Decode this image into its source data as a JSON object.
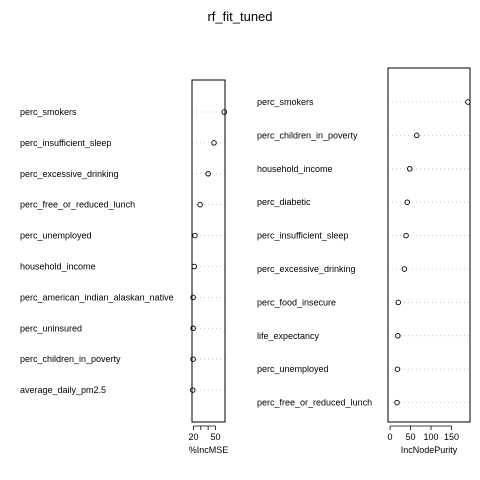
{
  "title": "rf_fit_tuned",
  "chart_data": [
    {
      "type": "scatter",
      "xlabel": "%IncMSE",
      "xlim": [
        18,
        63
      ],
      "xticks": [
        20,
        30,
        40,
        50
      ],
      "xticklabels": [
        "20",
        "",
        "",
        "50"
      ],
      "categories": [
        "perc_smokers",
        "perc_insufficient_sleep",
        "perc_excessive_drinking",
        "perc_free_or_reduced_lunch",
        "perc_unemployed",
        "household_income",
        "perc_american_indian_alaskan_native",
        "perc_uninsured",
        "perc_children_in_poverty",
        "average_daily_pm2.5"
      ],
      "values": [
        62,
        48,
        40,
        29,
        22,
        21,
        19.5,
        19.5,
        19.5,
        19
      ]
    },
    {
      "type": "scatter",
      "xlabel": "IncNodePurity",
      "xlim": [
        -5,
        195
      ],
      "xticks": [
        0,
        50,
        100,
        150
      ],
      "xticklabels": [
        "0",
        "50",
        "100",
        "150"
      ],
      "categories": [
        "perc_smokers",
        "perc_children_in_poverty",
        "household_income",
        "perc_diabetic",
        "perc_insufficient_sleep",
        "perc_excessive_drinking",
        "perc_food_insecure",
        "life_expectancy",
        "perc_unemployed",
        "perc_free_or_reduced_lunch"
      ],
      "values": [
        190,
        65,
        48,
        42,
        39,
        35,
        20,
        19,
        18,
        17
      ]
    }
  ]
}
